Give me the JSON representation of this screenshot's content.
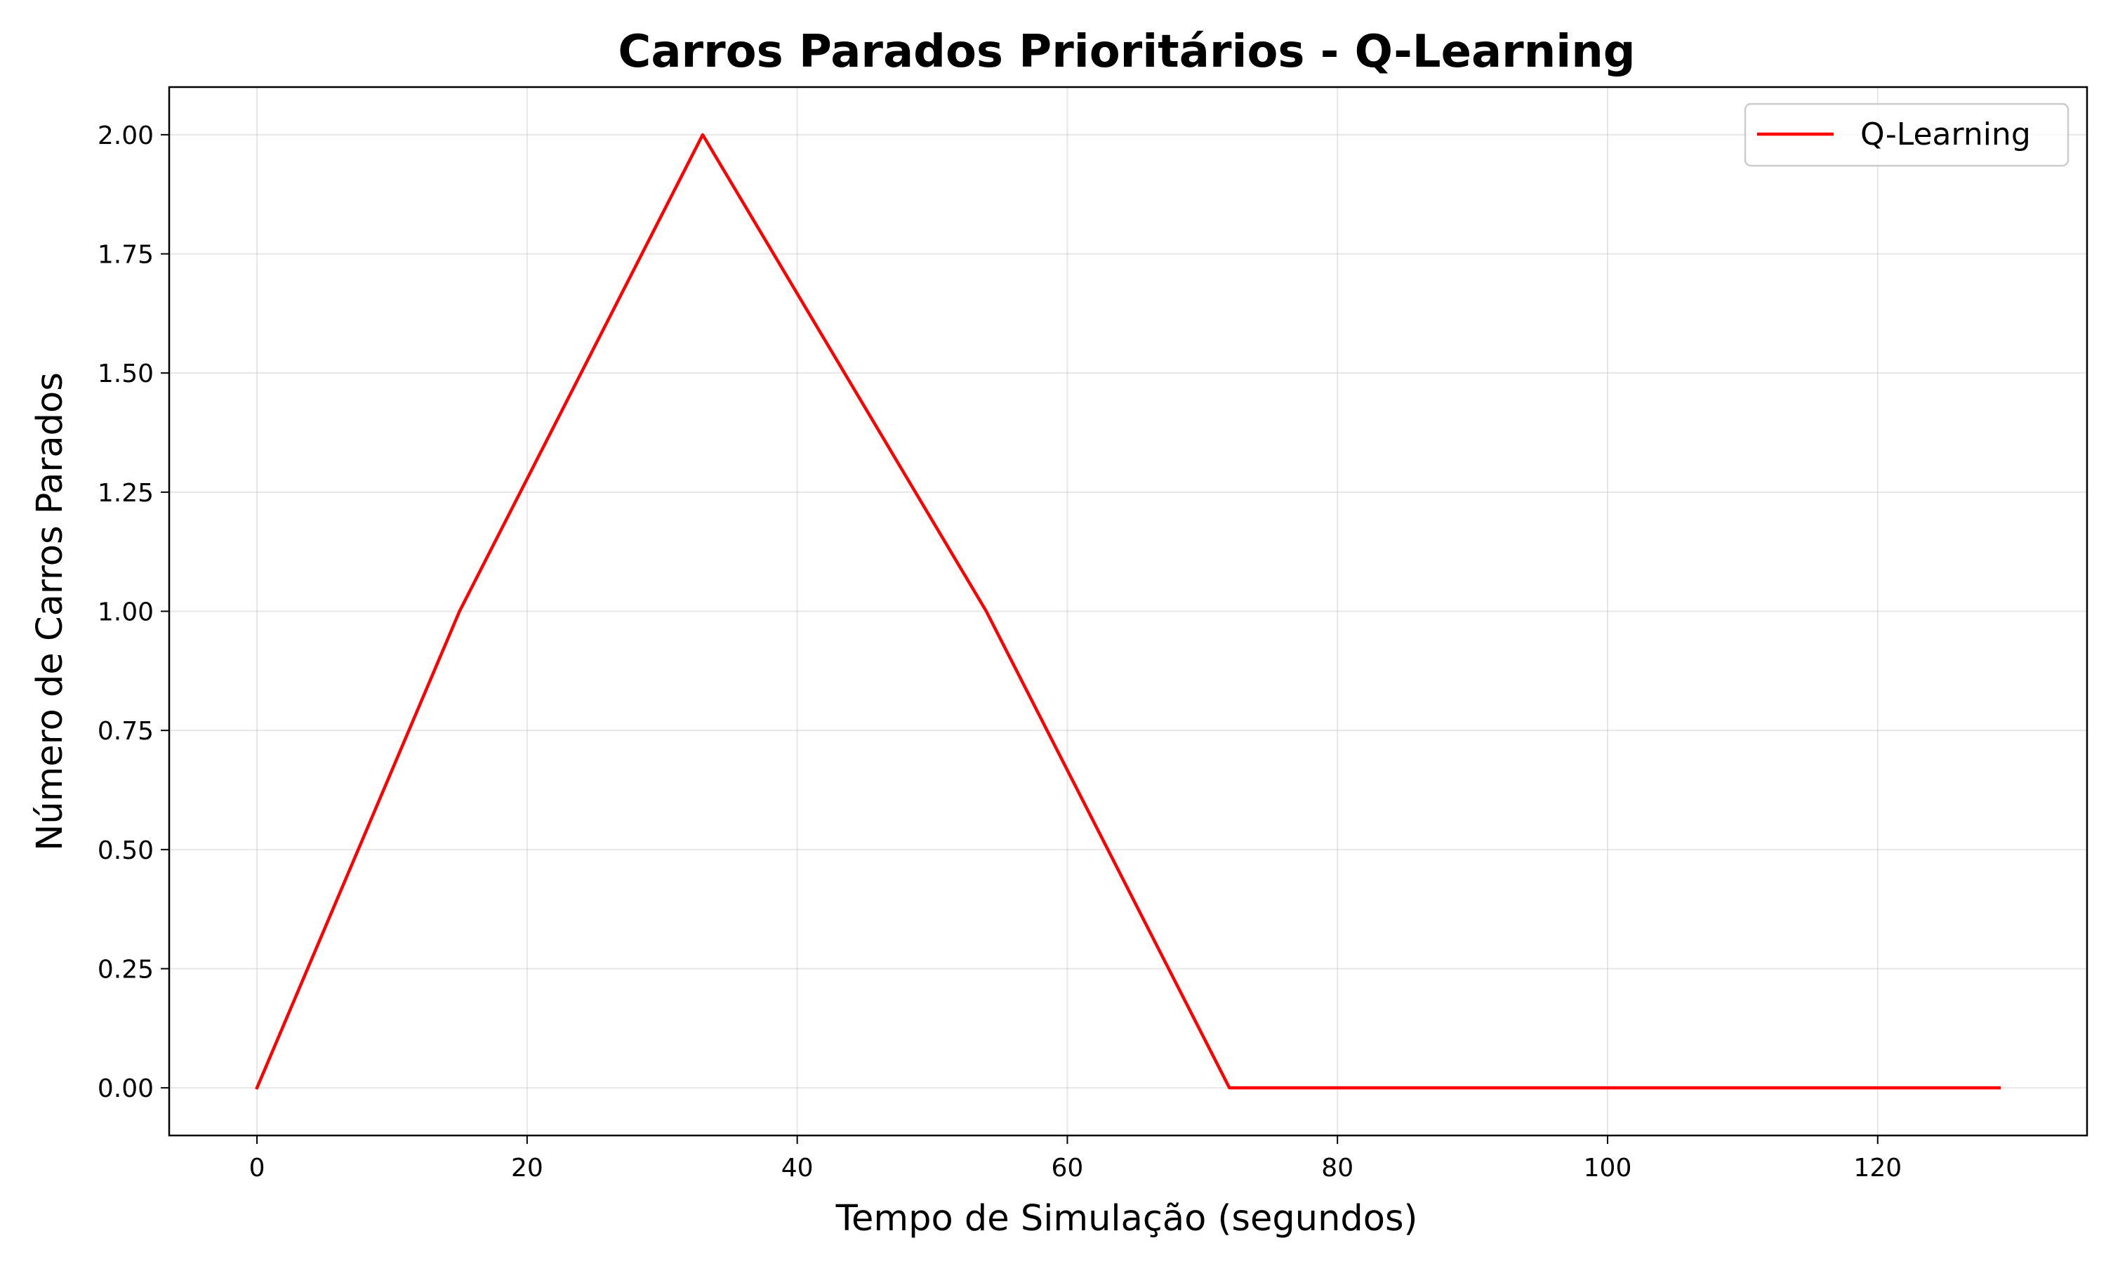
{
  "chart_data": {
    "type": "line",
    "title": "Carros Parados Prioritários - Q-Learning",
    "xlabel": "Tempo de Simulação (segundos)",
    "ylabel": "Número de Carros Parados",
    "xlim": [
      -6.5,
      135.5
    ],
    "ylim": [
      -0.1,
      2.1
    ],
    "xticks": [
      0,
      20,
      40,
      60,
      80,
      100,
      120
    ],
    "xtick_labels": [
      "0",
      "20",
      "40",
      "60",
      "80",
      "100",
      "120"
    ],
    "yticks": [
      0,
      0.25,
      0.5,
      0.75,
      1.0,
      1.25,
      1.5,
      1.75,
      2.0
    ],
    "ytick_labels": [
      "0.00",
      "0.25",
      "0.50",
      "0.75",
      "1.00",
      "1.25",
      "1.50",
      "1.75",
      "2.00"
    ],
    "grid": true,
    "legend_position": "top-right",
    "series": [
      {
        "name": "Q-Learning",
        "color": "#ff0000",
        "x": [
          0,
          15,
          33,
          54,
          72,
          129
        ],
        "y": [
          0,
          1,
          2,
          1,
          0,
          0
        ]
      }
    ]
  }
}
